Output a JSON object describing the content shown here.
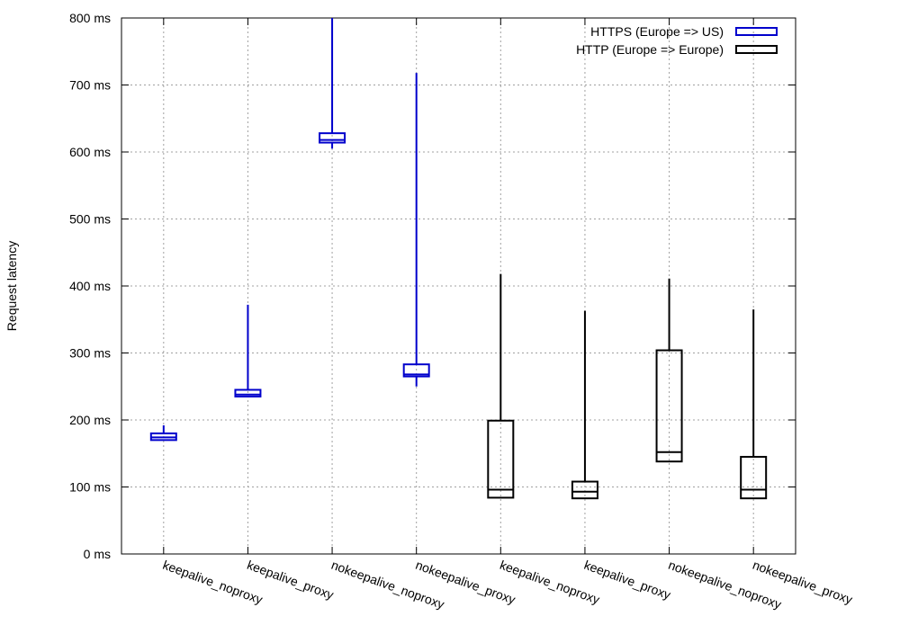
{
  "chart_data": {
    "type": "boxplot",
    "title": "",
    "xlabel": "",
    "ylabel": "Request latency",
    "ylim": [
      0,
      800
    ],
    "y_ticks": [
      {
        "value": 0,
        "label": "0 ms"
      },
      {
        "value": 100,
        "label": "100 ms"
      },
      {
        "value": 200,
        "label": "200 ms"
      },
      {
        "value": 300,
        "label": "300 ms"
      },
      {
        "value": 400,
        "label": "400 ms"
      },
      {
        "value": 500,
        "label": "500 ms"
      },
      {
        "value": 600,
        "label": "600 ms"
      },
      {
        "value": 700,
        "label": "700 ms"
      },
      {
        "value": 800,
        "label": "800 ms"
      }
    ],
    "grid": true,
    "legend_position": "top-right",
    "categories": [
      "keepalive_noproxy",
      "keepalive_proxy",
      "nokeepalive_noproxy",
      "nokeepalive_proxy",
      "keepalive_noproxy",
      "keepalive_proxy",
      "nokeepalive_noproxy",
      "nokeepalive_proxy"
    ],
    "series": [
      {
        "name": "HTTPS (Europe => US)",
        "color": "#0000cc",
        "boxes": [
          {
            "category_index": 0,
            "min": 170,
            "q1": 170,
            "median": 174,
            "q3": 180,
            "max": 192
          },
          {
            "category_index": 1,
            "min": 235,
            "q1": 235,
            "median": 238,
            "q3": 245,
            "max": 372
          },
          {
            "category_index": 2,
            "min": 605,
            "q1": 614,
            "median": 618,
            "q3": 628,
            "max": 800
          },
          {
            "category_index": 3,
            "min": 250,
            "q1": 265,
            "median": 268,
            "q3": 283,
            "max": 718
          }
        ]
      },
      {
        "name": "HTTP (Europe => Europe)",
        "color": "#000000",
        "boxes": [
          {
            "category_index": 4,
            "min": 84,
            "q1": 84,
            "median": 96,
            "q3": 199,
            "max": 418
          },
          {
            "category_index": 5,
            "min": 83,
            "q1": 83,
            "median": 93,
            "q3": 108,
            "max": 363
          },
          {
            "category_index": 6,
            "min": 138,
            "q1": 138,
            "median": 152,
            "q3": 304,
            "max": 411
          },
          {
            "category_index": 7,
            "min": 83,
            "q1": 83,
            "median": 96,
            "q3": 145,
            "max": 365
          }
        ]
      }
    ]
  }
}
